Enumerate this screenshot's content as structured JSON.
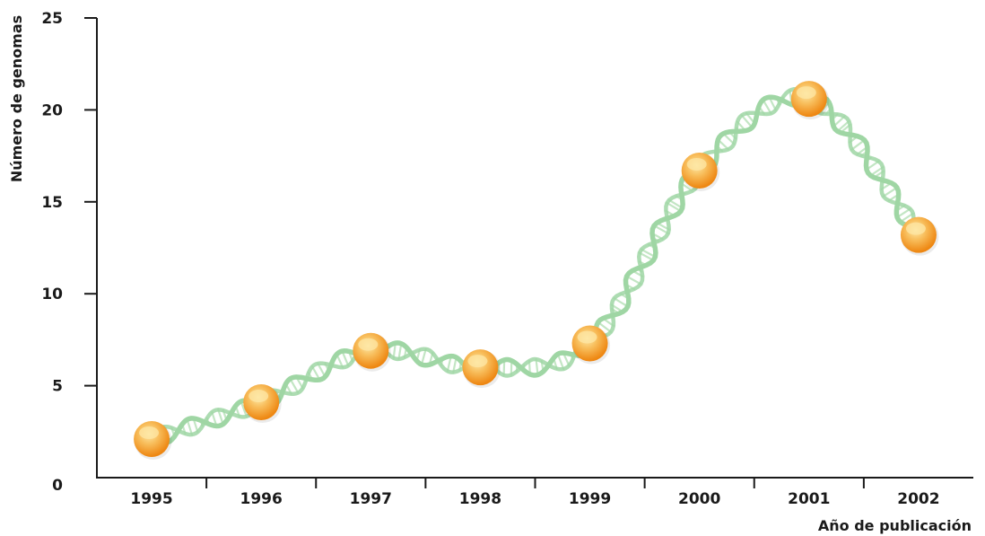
{
  "chart_data": {
    "type": "line",
    "x": [
      "1995",
      "1996",
      "1997",
      "1998",
      "1999",
      "2000",
      "2001",
      "2002"
    ],
    "series": [
      {
        "values": [
          2.1,
          4.1,
          6.9,
          6.0,
          7.3,
          16.7,
          20.6,
          13.2
        ]
      }
    ],
    "xlabel": "Año de publicación",
    "ylabel": "Número de genomas",
    "ylim": [
      0,
      25
    ],
    "yticks": [
      0,
      5,
      10,
      15,
      20,
      25
    ],
    "grid": false,
    "legend": "none",
    "colors": {
      "marker": "#f39a1e",
      "marker_highlight": "#fde7a6",
      "helix": "#9fd6a4",
      "helix_rungs": "#c3e6c4",
      "axis": "#1a1a1a"
    }
  }
}
